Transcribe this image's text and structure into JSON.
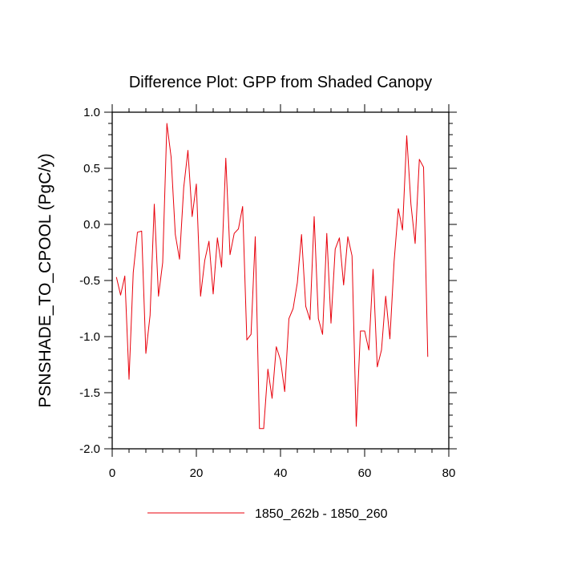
{
  "chart_data": {
    "type": "line",
    "title": "Difference Plot: GPP from Shaded Canopy",
    "xlabel": "",
    "ylabel": "PSNSHADE_TO_CPOOL  (PgC/y)",
    "xlim": [
      0,
      80
    ],
    "ylim": [
      -2.0,
      1.0
    ],
    "x_ticks": [
      "0",
      "20",
      "40",
      "60",
      "80"
    ],
    "y_ticks": [
      "-2.0",
      "-1.5",
      "-1.0",
      "-0.5",
      "0.0",
      "0.5",
      "1.0"
    ],
    "grid": false,
    "legend_position": "bottom",
    "series_color": "#e8000b",
    "series": [
      {
        "name": "1850_262b - 1850_260",
        "x": [
          1,
          2,
          3,
          4,
          5,
          6,
          7,
          8,
          9,
          10,
          11,
          12,
          13,
          14,
          15,
          16,
          17,
          18,
          19,
          20,
          21,
          22,
          23,
          24,
          25,
          26,
          27,
          28,
          29,
          30,
          31,
          32,
          33,
          34,
          35,
          36,
          37,
          38,
          39,
          40,
          41,
          42,
          43,
          44,
          45,
          46,
          47,
          48,
          49,
          50,
          51,
          52,
          53,
          54,
          55,
          56,
          57,
          58,
          59,
          60,
          61,
          62,
          63,
          64,
          65,
          66,
          67,
          68,
          69,
          70,
          71,
          72,
          73,
          74,
          75
        ],
        "values": [
          -0.47,
          -0.63,
          -0.46,
          -1.38,
          -0.43,
          -0.07,
          -0.06,
          -1.15,
          -0.81,
          0.18,
          -0.64,
          -0.34,
          0.9,
          0.6,
          -0.09,
          -0.31,
          0.33,
          0.66,
          0.07,
          0.36,
          -0.64,
          -0.32,
          -0.15,
          -0.62,
          -0.12,
          -0.38,
          0.59,
          -0.27,
          -0.08,
          -0.04,
          0.16,
          -1.03,
          -0.98,
          -0.11,
          -1.82,
          -1.82,
          -1.29,
          -1.55,
          -1.09,
          -1.21,
          -1.49,
          -0.84,
          -0.75,
          -0.52,
          -0.09,
          -0.73,
          -0.85,
          0.07,
          -0.84,
          -0.98,
          -0.08,
          -0.88,
          -0.22,
          -0.12,
          -0.54,
          -0.11,
          -0.28,
          -1.8,
          -0.95,
          -0.95,
          -1.12,
          -0.4,
          -1.27,
          -1.12,
          -0.64,
          -1.02,
          -0.33,
          0.14,
          -0.05,
          0.79,
          0.18,
          -0.17,
          0.58,
          0.51,
          -1.18
        ]
      }
    ]
  }
}
